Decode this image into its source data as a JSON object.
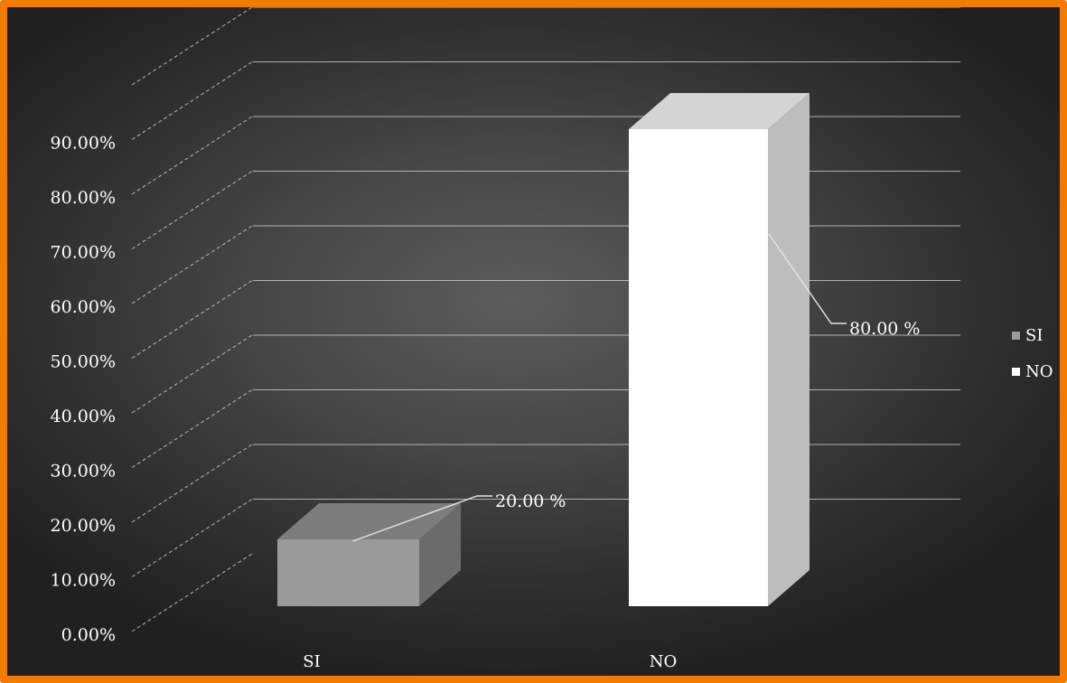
{
  "chart_data": {
    "type": "bar",
    "style": "3d-column",
    "categories": [
      "SI",
      "NO"
    ],
    "values": [
      20.0,
      80.0
    ],
    "data_labels": [
      "20.00 %",
      "80.00 %"
    ],
    "y_ticks": [
      "0.00%",
      "10.00%",
      "20.00%",
      "30.00%",
      "40.00%",
      "50.00%",
      "60.00%",
      "70.00%",
      "80.00%",
      "90.00%"
    ],
    "ylim": [
      0,
      100
    ],
    "grid": true,
    "legend": {
      "position": "right",
      "entries": [
        {
          "label": "SI",
          "color": "#9a9a9a"
        },
        {
          "label": "NO",
          "color": "#ffffff"
        }
      ]
    },
    "colors": {
      "border": "#f07d00",
      "si_bar": "#9a9a9a",
      "no_bar": "#ffffff",
      "gridline": "#d8d8d8"
    }
  }
}
